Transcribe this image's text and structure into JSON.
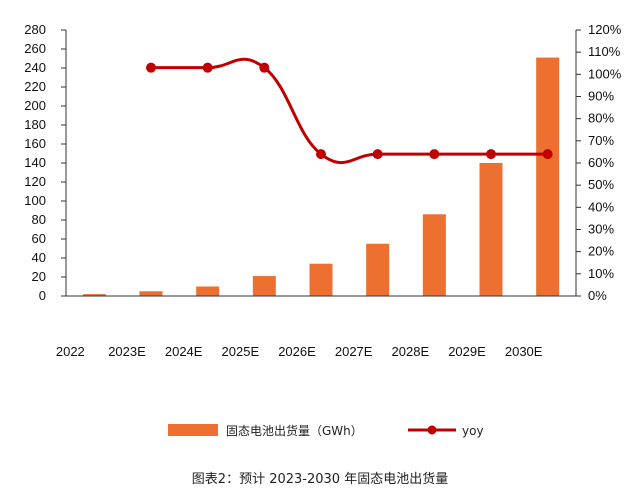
{
  "chart_data": {
    "type": "bar",
    "categories": [
      "2022",
      "2023E",
      "2024E",
      "2025E",
      "2026E",
      "2027E",
      "2028E",
      "2029E",
      "2030E"
    ],
    "series": [
      {
        "name": "固态电池出货量（GWh）",
        "type": "bar",
        "axis": "left",
        "values": [
          2,
          5,
          10,
          21,
          34,
          55,
          86,
          140,
          251
        ]
      },
      {
        "name": "yoy",
        "type": "line",
        "axis": "right",
        "smooth": true,
        "values": [
          null,
          103,
          103,
          103,
          64,
          64,
          64,
          64,
          64
        ]
      }
    ],
    "y_left": {
      "ylim": [
        0,
        280
      ],
      "step": 20
    },
    "y_right": {
      "ylim": [
        0,
        120
      ],
      "step": 10,
      "unit": "%"
    },
    "legend_position": "bottom",
    "grid": false,
    "colors": {
      "bar": "#ed7031",
      "line": "#c00000",
      "axis": "#333333"
    }
  },
  "caption": "图表2：预计 2023-2030 年固态电池出货量"
}
